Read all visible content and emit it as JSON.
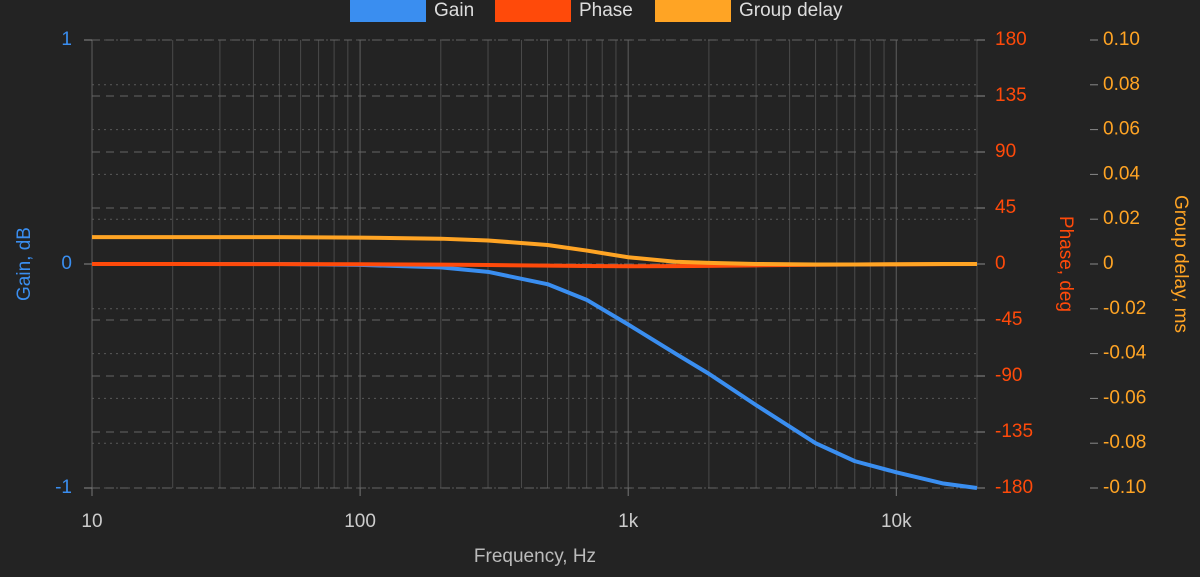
{
  "chart_data": {
    "type": "line",
    "x_label": "Frequency, Hz",
    "y_label": "Gain, dB",
    "y2_label": "Phase, deg",
    "y3_label": "Group delay, ms",
    "x_scale": "log",
    "x": [
      10,
      20,
      50,
      100,
      200,
      300,
      500,
      700,
      1000,
      1500,
      2000,
      3000,
      5000,
      7000,
      10000,
      15000,
      20000
    ],
    "series": [
      {
        "name": "Gain",
        "color": "#3a8ef0",
        "axis": "y",
        "values": [
          0,
          0,
          0,
          -0.004,
          -0.015,
          -0.035,
          -0.09,
          -0.16,
          -0.27,
          -0.4,
          -0.49,
          -0.63,
          -0.8,
          -0.88,
          -0.93,
          -0.98,
          -1.0
        ]
      },
      {
        "name": "Phase",
        "color": "#ff4a0a",
        "axis": "y2",
        "values": [
          0,
          0,
          -0.1,
          -0.2,
          -0.5,
          -0.8,
          -1.3,
          -1.6,
          -1.8,
          -1.7,
          -1.5,
          -1.1,
          -0.6,
          -0.4,
          -0.3,
          -0.1,
          0
        ]
      },
      {
        "name": "Group delay",
        "color": "#ffa424",
        "axis": "y3",
        "values": [
          0.012,
          0.012,
          0.012,
          0.0118,
          0.0113,
          0.0105,
          0.0085,
          0.006,
          0.003,
          0.001,
          0.0005,
          0,
          -0.0002,
          -0.0002,
          -0.0001,
          0,
          0
        ]
      }
    ],
    "xlim": [
      10,
      20000
    ],
    "xticks": [
      10,
      100,
      {
        "value": 1000,
        "label": "1k"
      },
      {
        "value": 10000,
        "label": "10k"
      }
    ],
    "xminorticks": [
      20,
      30,
      40,
      50,
      60,
      70,
      80,
      90,
      200,
      300,
      400,
      500,
      600,
      700,
      800,
      900,
      2000,
      3000,
      4000,
      5000,
      6000,
      7000,
      8000,
      9000,
      20000
    ],
    "ylim": [
      -1,
      1
    ],
    "yticks": [
      -1,
      0,
      1
    ],
    "y2lim": [
      -180,
      180
    ],
    "y2ticks": [
      -180,
      -135,
      -90,
      -45,
      0,
      45,
      90,
      135,
      180
    ],
    "y3lim": [
      -0.1,
      0.1
    ],
    "y3ticks": [
      {
        "value": -0.1,
        "label": "-0.10"
      },
      -0.08,
      -0.06,
      -0.04,
      -0.02,
      0,
      0.02,
      0.04,
      0.06,
      0.08,
      {
        "value": 0.1,
        "label": "0.10"
      }
    ],
    "grid": true
  }
}
